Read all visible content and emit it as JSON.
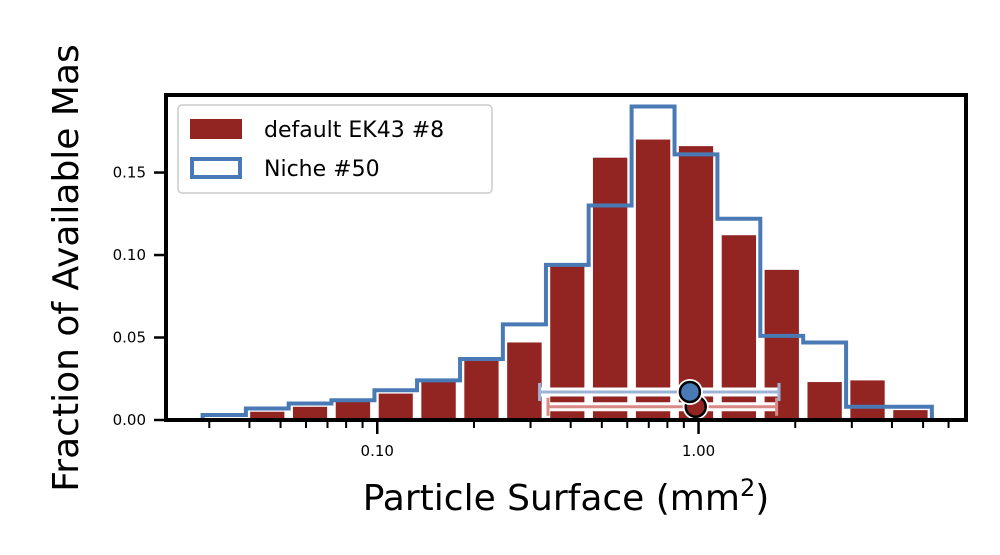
{
  "chart_data": {
    "type": "bar",
    "title": "",
    "xlabel": "Particle Surface (mm",
    "xlabel_superscript": "2",
    "xlabel_suffix": ")",
    "ylabel": "Fraction of Available Mas",
    "xscale": "log",
    "xlim": [
      0.022,
      6.8
    ],
    "ylim": [
      0,
      0.197
    ],
    "grid": false,
    "legend_position": "top-left",
    "x_major_ticks": [
      0.1,
      1.0
    ],
    "x_major_tick_labels": [
      "0.10",
      "1.00"
    ],
    "y_ticks": [
      0.0,
      0.05,
      0.1,
      0.15
    ],
    "y_tick_labels": [
      "0.00",
      "0.05",
      "0.10",
      "0.15"
    ],
    "bin_edges": [
      0.0286,
      0.039,
      0.053,
      0.072,
      0.098,
      0.133,
      0.181,
      0.246,
      0.335,
      0.455,
      0.619,
      0.842,
      1.145,
      1.557,
      2.117,
      2.879,
      3.915,
      5.325
    ],
    "series": [
      {
        "name": "default EK43 #8",
        "kind": "bar",
        "color": "#922421",
        "values": [
          0.0,
          0.005,
          0.008,
          0.011,
          0.016,
          0.025,
          0.036,
          0.047,
          0.095,
          0.159,
          0.17,
          0.166,
          0.112,
          0.091,
          0.023,
          0.024,
          0.006
        ],
        "marker_x": 0.98,
        "marker_y": 0.008,
        "error_x": [
          0.34,
          1.75
        ]
      },
      {
        "name": "Niche #50",
        "kind": "step",
        "color": "#4a7ab5",
        "values": [
          0.003,
          0.007,
          0.01,
          0.012,
          0.018,
          0.024,
          0.037,
          0.058,
          0.094,
          0.13,
          0.19,
          0.161,
          0.122,
          0.051,
          0.047,
          0.008,
          0.008
        ],
        "marker_x": 0.94,
        "marker_y": 0.017,
        "error_x": [
          0.32,
          1.78
        ]
      }
    ]
  }
}
